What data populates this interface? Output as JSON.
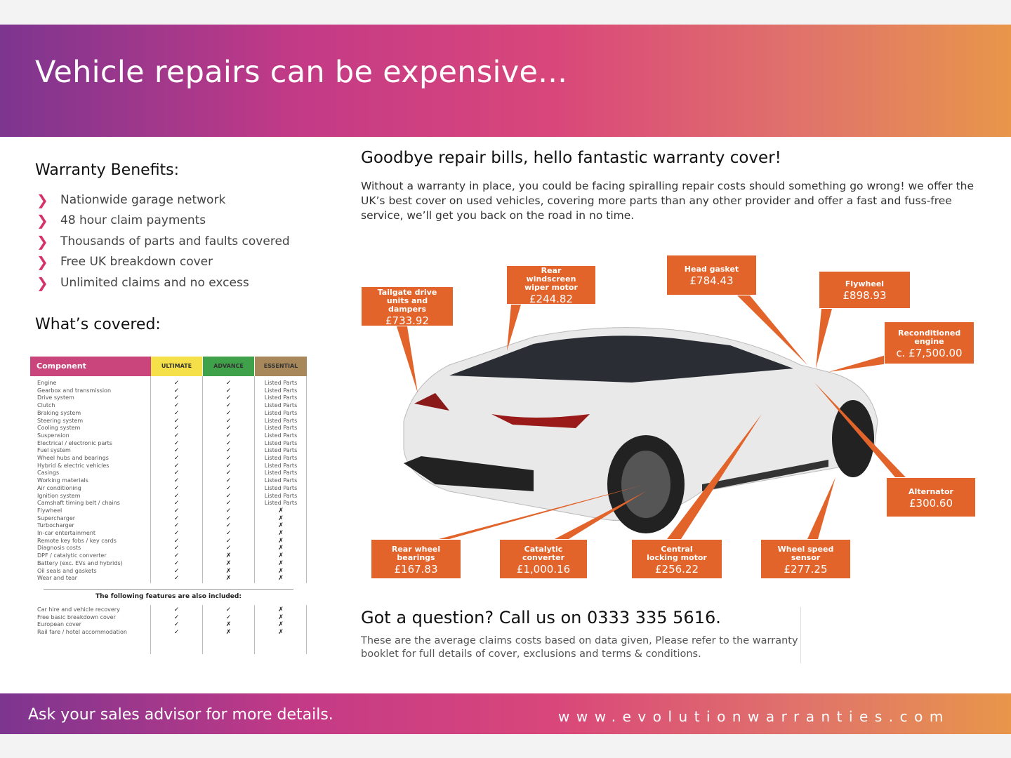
{
  "header": {
    "title": "Vehicle repairs can be expensive..."
  },
  "benefits": {
    "title": "Warranty Benefits:",
    "items": [
      "Nationwide garage network",
      "48 hour claim payments",
      "Thousands of parts and faults covered",
      "Free UK breakdown cover",
      "Unlimited claims and no excess"
    ]
  },
  "covered": {
    "title": "What’s covered:",
    "headers": [
      "Component",
      "ULTIMATE",
      "ADVANCE",
      "ESSENTIAL"
    ],
    "header_colors": [
      "#c9457c",
      "#f5e04a",
      "#3fa14a",
      "#a8875a"
    ],
    "rows": [
      [
        "Engine",
        "✓",
        "✓",
        "Listed Parts"
      ],
      [
        "Gearbox and transmission",
        "✓",
        "✓",
        "Listed Parts"
      ],
      [
        "Drive system",
        "✓",
        "✓",
        "Listed Parts"
      ],
      [
        "Clutch",
        "✓",
        "✓",
        "Listed Parts"
      ],
      [
        "Braking system",
        "✓",
        "✓",
        "Listed Parts"
      ],
      [
        "Steering system",
        "✓",
        "✓",
        "Listed Parts"
      ],
      [
        "Cooling system",
        "✓",
        "✓",
        "Listed Parts"
      ],
      [
        "Suspension",
        "✓",
        "✓",
        "Listed Parts"
      ],
      [
        "Electrical / electronic parts",
        "✓",
        "✓",
        "Listed Parts"
      ],
      [
        "Fuel system",
        "✓",
        "✓",
        "Listed Parts"
      ],
      [
        "Wheel hubs and bearings",
        "✓",
        "✓",
        "Listed Parts"
      ],
      [
        "Hybrid & electric vehicles",
        "✓",
        "✓",
        "Listed Parts"
      ],
      [
        "Casings",
        "✓",
        "✓",
        "Listed Parts"
      ],
      [
        "Working materials",
        "✓",
        "✓",
        "Listed Parts"
      ],
      [
        "Air conditioning",
        "✓",
        "✓",
        "Listed Parts"
      ],
      [
        "Ignition system",
        "✓",
        "✓",
        "Listed Parts"
      ],
      [
        "Camshaft timing belt / chains",
        "✓",
        "✓",
        "Listed Parts"
      ],
      [
        "Flywheel",
        "✓",
        "✓",
        "✗"
      ],
      [
        "Supercharger",
        "✓",
        "✓",
        "✗"
      ],
      [
        "Turbocharger",
        "✓",
        "✓",
        "✗"
      ],
      [
        "In-car entertainment",
        "✓",
        "✓",
        "✗"
      ],
      [
        "Remote key fobs / key cards",
        "✓",
        "✓",
        "✗"
      ],
      [
        "Diagnosis costs",
        "✓",
        "✓",
        "✗"
      ],
      [
        "DPF / catalytic converter",
        "✓",
        "✗",
        "✗"
      ],
      [
        "Battery (exc. EVs and hybrids)",
        "✓",
        "✗",
        "✗"
      ],
      [
        "Oil seals and gaskets",
        "✓",
        "✗",
        "✗"
      ],
      [
        "Wear and tear",
        "✓",
        "✗",
        "✗"
      ]
    ],
    "extras_title": "The following features are also included:",
    "extras": [
      [
        "Car hire and vehicle recovery",
        "✓",
        "✓",
        "✗"
      ],
      [
        "Free basic breakdown cover",
        "✓",
        "✓",
        "✗"
      ],
      [
        "European cover",
        "✓",
        "✗",
        "✗"
      ],
      [
        "Rail fare / hotel accommodation",
        "✓",
        "✗",
        "✗"
      ]
    ]
  },
  "main": {
    "title": "Goodbye repair bills, hello fantastic warranty cover!",
    "body": "Without a warranty in place, you could be facing spiralling repair costs should something go wrong! we offer the UK’s best cover on used vehicles, covering more parts than any other provider and offer a fast and fuss-free service, we’ll get you back on the road in no time."
  },
  "callouts": [
    {
      "label": "Tailgate drive units and dampers",
      "price": "£733.92"
    },
    {
      "label": "Rear windscreen wiper motor",
      "price": "£244.82"
    },
    {
      "label": "Head gasket",
      "price": "£784.43"
    },
    {
      "label": "Flywheel",
      "price": "£898.93"
    },
    {
      "label": "Reconditioned engine",
      "price": "c. £7,500.00"
    },
    {
      "label": "Alternator",
      "price": "£300.60"
    },
    {
      "label": "Rear wheel bearings",
      "price": "£167.83"
    },
    {
      "label": "Catalytic converter",
      "price": "£1,000.16"
    },
    {
      "label": "Central locking motor",
      "price": "£256.22"
    },
    {
      "label": "Wheel speed sensor",
      "price": "£277.25"
    }
  ],
  "question": {
    "title": "Got a question? Call us on 0333 335 5616.",
    "body": "These are the average claims costs based on data given, Please refer to the warranty booklet for full details of cover, exclusions and terms & conditions."
  },
  "footer": {
    "left": "Ask your sales advisor for more details.",
    "right": "www.evolutionwarranties.com"
  },
  "colors": {
    "callout": "#e2642b",
    "chevron": "#d6336c"
  }
}
